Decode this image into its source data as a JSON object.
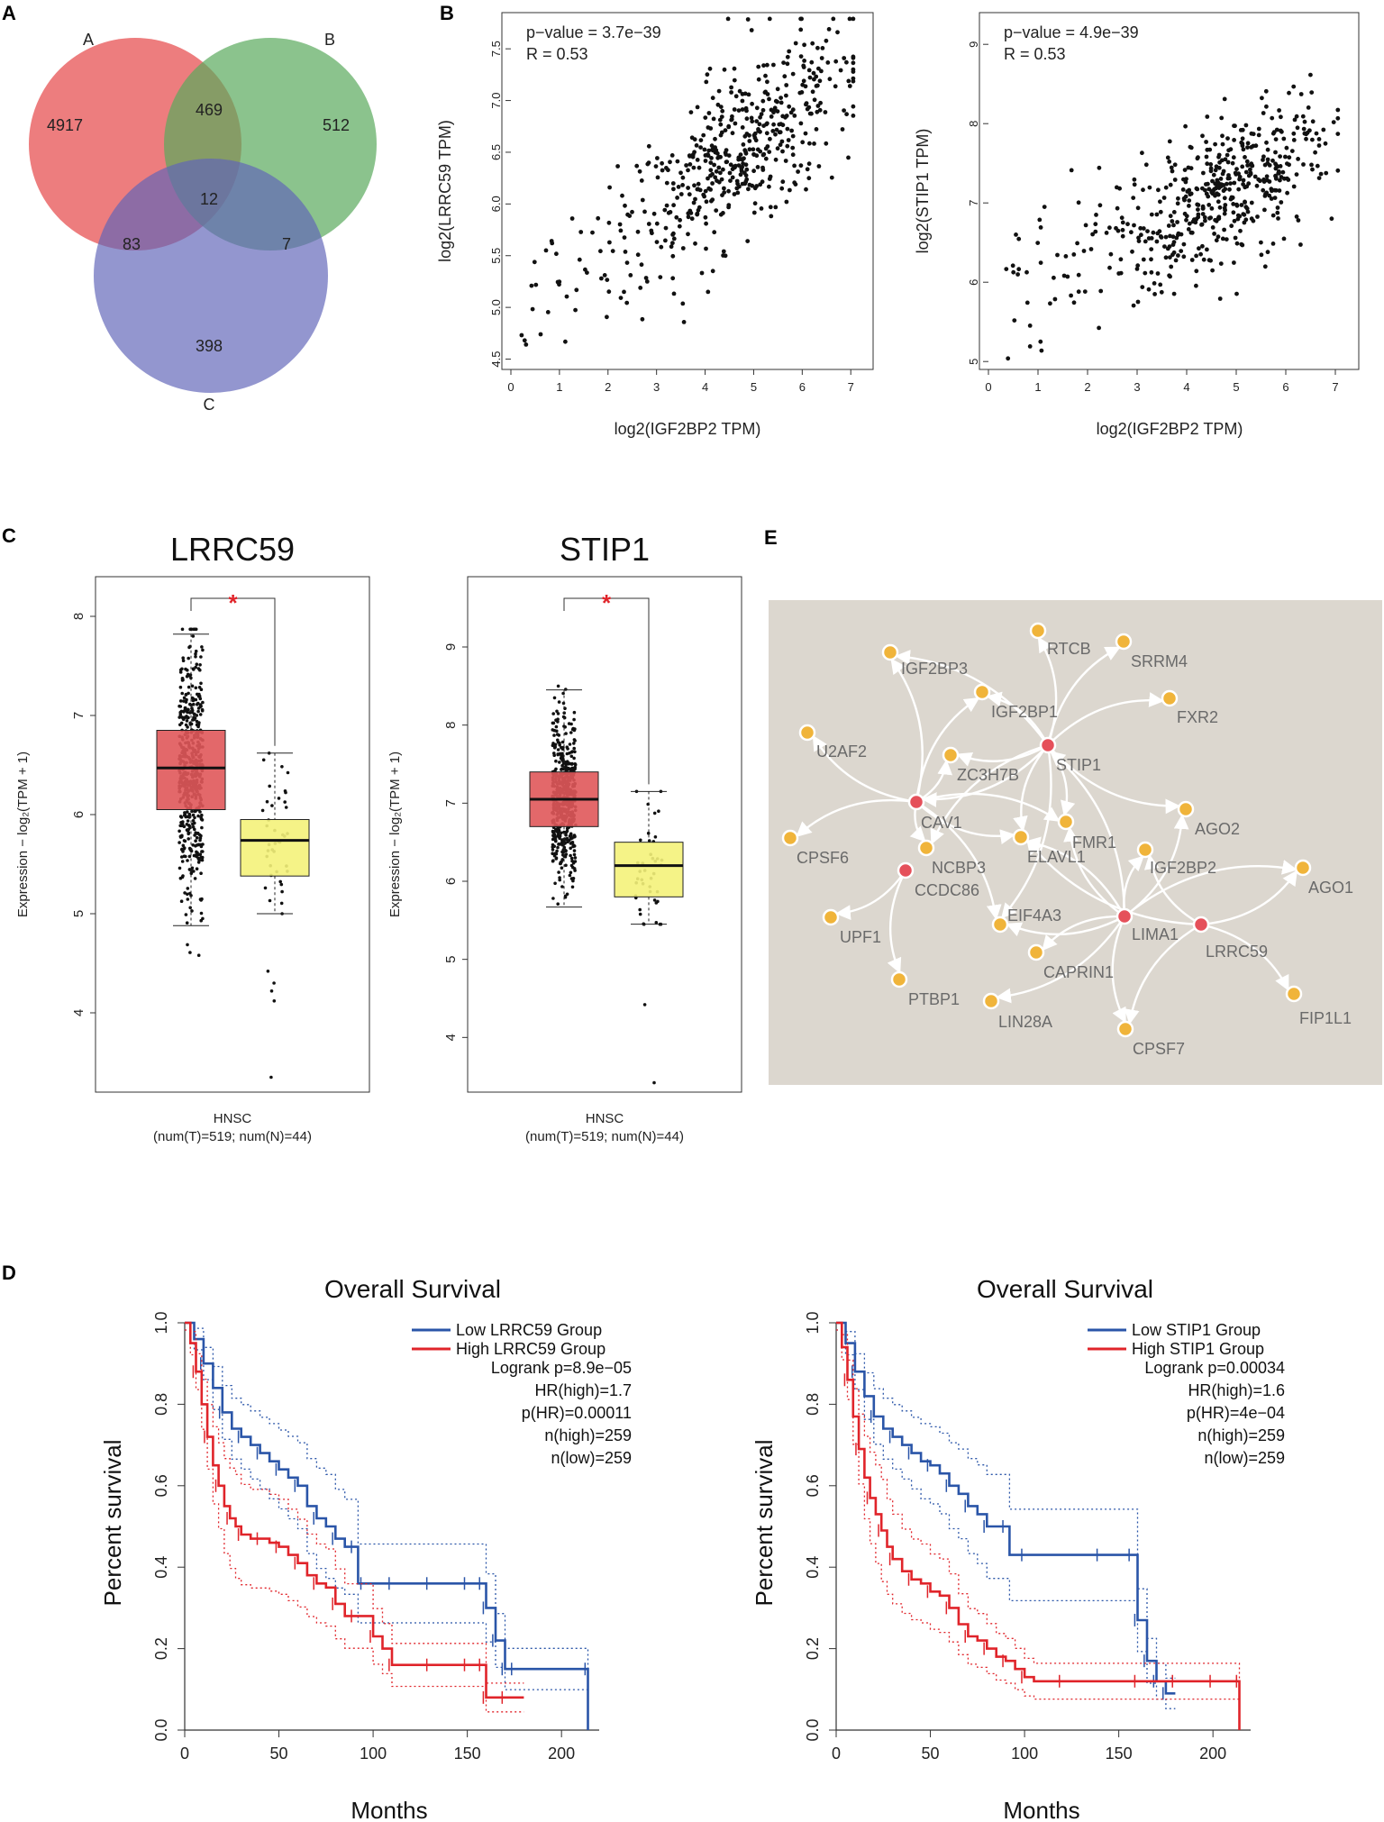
{
  "panel_labels": [
    "A",
    "B",
    "C",
    "D",
    "E"
  ],
  "colors": {
    "venn_a": "#e8585a",
    "venn_b": "#5aaa5c",
    "venn_c": "#6064b8",
    "box_tumor": "#e0585a",
    "box_normal": "#f4f27a",
    "network_bg": "#dcd7cf",
    "hub_node": "#e5505a",
    "leaf_node": "#f0b43a",
    "km_low": "#2a55a8",
    "km_high": "#e0242a",
    "star": "#e0242a"
  },
  "chart_data": [
    {
      "type": "venn",
      "panel": "A",
      "sets": [
        "A",
        "B",
        "C"
      ],
      "regions": {
        "A_only": 4917,
        "B_only": 512,
        "C_only": 398,
        "AB_only": 469,
        "AC_only": 83,
        "BC_only": 7,
        "ABC": 12
      }
    },
    {
      "type": "scatter",
      "panel": "B",
      "annotation_p": "p−value = 3.7e−39",
      "annotation_r": "R = 0.53",
      "xlabel": "log2(IGF2BP2 TPM)",
      "ylabel": "log2(LRRC59 TPM)",
      "xlim": [
        0,
        7.2
      ],
      "ylim": [
        4.4,
        7.85
      ],
      "xticks": [
        0,
        1,
        2,
        3,
        4,
        5,
        6,
        7
      ],
      "yticks": [
        4.5,
        5.0,
        5.5,
        6.0,
        6.5,
        7.0,
        7.5
      ],
      "ytick_labels": [
        "4.5",
        "5.0",
        "5.5",
        "6.0",
        "6.5",
        "7.0",
        "7.5"
      ],
      "n_points": 519,
      "x_mean": 4.7,
      "x_sd": 1.1,
      "y_intercept": 4.95,
      "y_slope": 0.33,
      "y_noise": 0.38
    },
    {
      "type": "scatter",
      "panel": "B",
      "annotation_p": "p−value = 4.9e−39",
      "annotation_r": "R = 0.53",
      "xlabel": "log2(IGF2BP2 TPM)",
      "ylabel": "log2(STIP1 TPM)",
      "xlim": [
        0,
        7.2
      ],
      "ylim": [
        4.9,
        9.4
      ],
      "xticks": [
        0,
        1,
        2,
        3,
        4,
        5,
        6,
        7
      ],
      "yticks": [
        5,
        6,
        7,
        8,
        9
      ],
      "ytick_labels": [
        "5",
        "6",
        "7",
        "8",
        "9"
      ],
      "n_points": 519,
      "x_mean": 4.7,
      "x_sd": 1.1,
      "y_intercept": 5.7,
      "y_slope": 0.3,
      "y_noise": 0.45
    },
    {
      "type": "boxplot",
      "panel": "C",
      "title": "LRRC59",
      "ylabel": "Expression − log₂(TPM + 1)",
      "ylim": [
        3.2,
        8.4
      ],
      "yticks": [
        4,
        5,
        6,
        7,
        8
      ],
      "category": "HNSC",
      "subcaption": "(num(T)=519; num(N)=44)",
      "significance": "*",
      "tumor": {
        "n": 519,
        "q1": 6.05,
        "median": 6.47,
        "q3": 6.85,
        "wlo": 4.88,
        "whi": 7.82
      },
      "normal": {
        "n": 44,
        "q1": 5.38,
        "median": 5.74,
        "q3": 5.95,
        "wlo": 5.0,
        "whi": 6.62,
        "outliers": [
          4.42,
          4.3,
          4.22,
          4.12,
          3.35
        ]
      }
    },
    {
      "type": "boxplot",
      "panel": "C",
      "title": "STIP1",
      "ylabel": "Expression − log₂(TPM + 1)",
      "ylim": [
        3.3,
        9.9
      ],
      "yticks": [
        4,
        5,
        6,
        7,
        8,
        9
      ],
      "category": "HNSC",
      "subcaption": "(num(T)=519; num(N)=44)",
      "significance": "*",
      "tumor": {
        "n": 519,
        "q1": 6.7,
        "median": 7.05,
        "q3": 7.4,
        "wlo": 5.67,
        "whi": 8.45
      },
      "normal": {
        "n": 44,
        "q1": 5.8,
        "median": 6.2,
        "q3": 6.5,
        "wlo": 5.45,
        "whi": 7.15,
        "outliers": [
          4.42,
          3.42
        ]
      }
    },
    {
      "type": "network",
      "panel": "E",
      "hubs": [
        "STIP1",
        "CAV1",
        "CCDC86",
        "LIMA1",
        "LRRC59"
      ],
      "nodes": [
        "IGF2BP3",
        "RTCB",
        "SRRM4",
        "IGF2BP1",
        "FXR2",
        "U2AF2",
        "STIP1",
        "ZC3H7B",
        "CAV1",
        "AGO2",
        "CPSF6",
        "FMR1",
        "NCBP3",
        "ELAVL1",
        "IGF2BP2",
        "AGO1",
        "CCDC86",
        "EIF4A3",
        "UPF1",
        "LIMA1",
        "LRRC59",
        "CAPRIN1",
        "PTBP1",
        "LIN28A",
        "FIP1L1",
        "CPSF7"
      ],
      "edges": [
        [
          "STIP1",
          "RTCB"
        ],
        [
          "STIP1",
          "SRRM4"
        ],
        [
          "STIP1",
          "IGF2BP1"
        ],
        [
          "STIP1",
          "FXR2"
        ],
        [
          "STIP1",
          "IGF2BP3"
        ],
        [
          "STIP1",
          "ZC3H7B"
        ],
        [
          "STIP1",
          "AGO2"
        ],
        [
          "STIP1",
          "FMR1"
        ],
        [
          "STIP1",
          "ELAVL1"
        ],
        [
          "STIP1",
          "EIF4A3"
        ],
        [
          "STIP1",
          "NCBP3"
        ],
        [
          "STIP1",
          "CAV1"
        ],
        [
          "CAV1",
          "IGF2BP3"
        ],
        [
          "CAV1",
          "U2AF2"
        ],
        [
          "CAV1",
          "CPSF6"
        ],
        [
          "CAV1",
          "IGF2BP1"
        ],
        [
          "CAV1",
          "ZC3H7B"
        ],
        [
          "CAV1",
          "FMR1"
        ],
        [
          "CAV1",
          "ELAVL1"
        ],
        [
          "CAV1",
          "EIF4A3"
        ],
        [
          "CAV1",
          "NCBP3"
        ],
        [
          "CCDC86",
          "UPF1"
        ],
        [
          "CCDC86",
          "PTBP1"
        ],
        [
          "LIMA1",
          "FMR1"
        ],
        [
          "LIMA1",
          "ELAVL1"
        ],
        [
          "LIMA1",
          "IGF2BP2"
        ],
        [
          "LIMA1",
          "AGO2"
        ],
        [
          "LIMA1",
          "AGO1"
        ],
        [
          "LIMA1",
          "CAPRIN1"
        ],
        [
          "LIMA1",
          "LIN28A"
        ],
        [
          "LIMA1",
          "CPSF7"
        ],
        [
          "LIMA1",
          "EIF4A3"
        ],
        [
          "LIMA1",
          "STIP1"
        ],
        [
          "LRRC59",
          "FIP1L1"
        ],
        [
          "LRRC59",
          "AGO1"
        ],
        [
          "LRRC59",
          "IGF2BP2"
        ],
        [
          "LRRC59",
          "CPSF7"
        ],
        [
          "LRRC59",
          "ELAVL1"
        ]
      ]
    },
    {
      "type": "line",
      "subtype": "kaplan-meier",
      "panel": "D",
      "title": "Overall Survival",
      "xlabel": "Months",
      "ylabel": "Percent survival",
      "xlim": [
        0,
        220
      ],
      "ylim": [
        0,
        1.0
      ],
      "xticks": [
        0,
        50,
        100,
        150,
        200
      ],
      "yticks": [
        "0.0",
        "0.2",
        "0.4",
        "0.6",
        "0.8",
        "1.0"
      ],
      "legend": [
        "Low LRRC59 Group",
        "High LRRC59 Group"
      ],
      "stats": [
        "Logrank p=8.9e−05",
        "HR(high)=1.7",
        "p(HR)=0.00011",
        "n(high)=259",
        "n(low)=259"
      ],
      "series": [
        {
          "name": "Low LRRC59 Group",
          "group": "low",
          "x": [
            0,
            5,
            10,
            15,
            20,
            25,
            30,
            35,
            40,
            45,
            50,
            55,
            60,
            65,
            70,
            75,
            80,
            85,
            90,
            92,
            95,
            100,
            110,
            120,
            130,
            140,
            150,
            158,
            160,
            165,
            170,
            175,
            214,
            214
          ],
          "y": [
            1.0,
            0.96,
            0.9,
            0.84,
            0.78,
            0.74,
            0.72,
            0.7,
            0.68,
            0.66,
            0.64,
            0.62,
            0.6,
            0.55,
            0.52,
            0.5,
            0.47,
            0.45,
            0.45,
            0.36,
            0.36,
            0.36,
            0.36,
            0.36,
            0.36,
            0.36,
            0.36,
            0.36,
            0.3,
            0.22,
            0.15,
            0.15,
            0.15,
            0.0
          ]
        },
        {
          "name": "High LRRC59 Group",
          "group": "high",
          "x": [
            0,
            3,
            6,
            9,
            12,
            15,
            18,
            21,
            24,
            27,
            30,
            35,
            40,
            45,
            50,
            55,
            60,
            65,
            70,
            75,
            80,
            85,
            90,
            95,
            100,
            105,
            110,
            120,
            130,
            140,
            150,
            158,
            160,
            170,
            180
          ],
          "y": [
            1.0,
            0.95,
            0.88,
            0.8,
            0.72,
            0.65,
            0.6,
            0.55,
            0.52,
            0.5,
            0.48,
            0.47,
            0.47,
            0.46,
            0.45,
            0.43,
            0.41,
            0.38,
            0.36,
            0.35,
            0.31,
            0.28,
            0.28,
            0.28,
            0.23,
            0.2,
            0.16,
            0.16,
            0.16,
            0.16,
            0.16,
            0.16,
            0.08,
            0.08,
            0.08
          ]
        }
      ]
    },
    {
      "type": "line",
      "subtype": "kaplan-meier",
      "panel": "D",
      "title": "Overall Survival",
      "xlabel": "Months",
      "ylabel": "Percent survival",
      "xlim": [
        0,
        220
      ],
      "ylim": [
        0,
        1.0
      ],
      "xticks": [
        0,
        50,
        100,
        150,
        200
      ],
      "yticks": [
        "0.0",
        "0.2",
        "0.4",
        "0.6",
        "0.8",
        "1.0"
      ],
      "legend": [
        "Low STIP1 Group",
        "High STIP1 Group"
      ],
      "stats": [
        "Logrank p=0.00034",
        "HR(high)=1.6",
        "p(HR)=4e−04",
        "n(high)=259",
        "n(low)=259"
      ],
      "series": [
        {
          "name": "Low STIP1 Group",
          "group": "low",
          "x": [
            0,
            5,
            10,
            15,
            20,
            25,
            30,
            35,
            40,
            45,
            50,
            55,
            60,
            65,
            70,
            75,
            80,
            85,
            90,
            92,
            100,
            120,
            140,
            150,
            157,
            160,
            165,
            170,
            175,
            180
          ],
          "y": [
            1.0,
            0.95,
            0.88,
            0.82,
            0.77,
            0.74,
            0.72,
            0.7,
            0.68,
            0.66,
            0.65,
            0.63,
            0.6,
            0.58,
            0.55,
            0.53,
            0.5,
            0.5,
            0.5,
            0.43,
            0.43,
            0.43,
            0.43,
            0.43,
            0.43,
            0.27,
            0.17,
            0.12,
            0.09,
            0.09
          ]
        },
        {
          "name": "High STIP1 Group",
          "group": "high",
          "x": [
            0,
            3,
            6,
            9,
            12,
            15,
            18,
            21,
            24,
            27,
            30,
            35,
            40,
            45,
            50,
            55,
            60,
            65,
            70,
            75,
            80,
            85,
            90,
            95,
            100,
            105,
            120,
            140,
            160,
            180,
            200,
            214,
            214
          ],
          "y": [
            1.0,
            0.94,
            0.86,
            0.77,
            0.69,
            0.62,
            0.57,
            0.53,
            0.49,
            0.45,
            0.42,
            0.39,
            0.37,
            0.36,
            0.34,
            0.33,
            0.3,
            0.26,
            0.23,
            0.22,
            0.2,
            0.18,
            0.17,
            0.15,
            0.13,
            0.12,
            0.12,
            0.12,
            0.12,
            0.12,
            0.12,
            0.12,
            0.0
          ]
        }
      ]
    }
  ]
}
